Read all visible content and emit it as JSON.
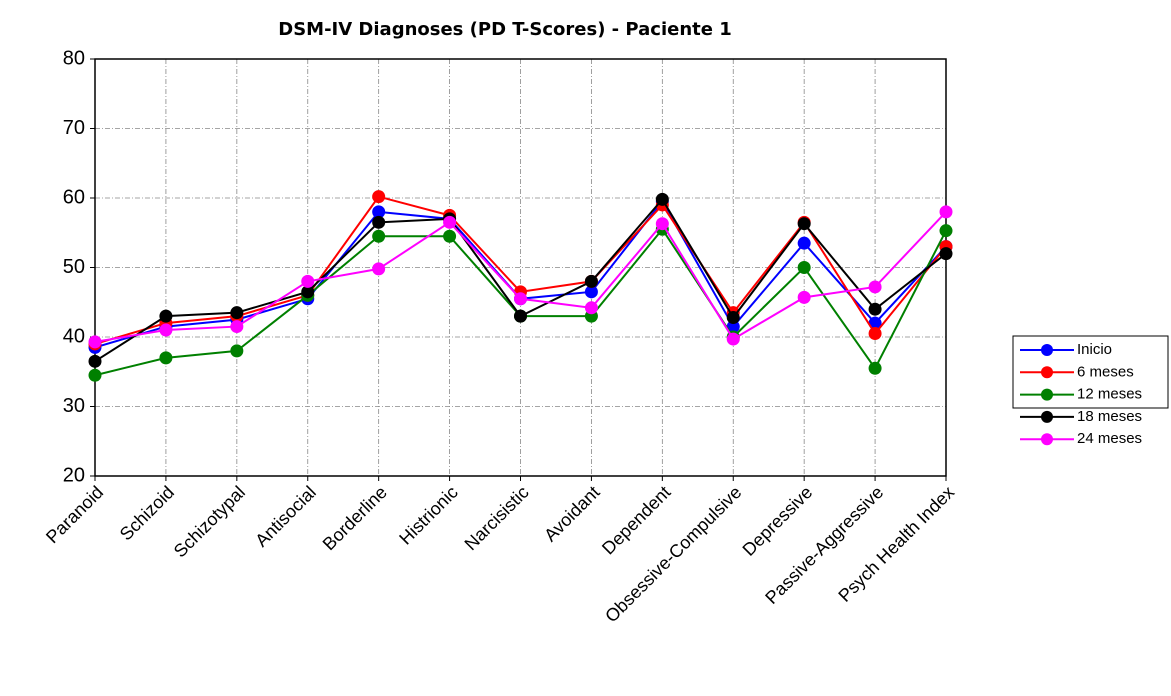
{
  "chart_data": {
    "type": "line",
    "title": "DSM-IV Diagnoses (PD T-Scores) - Paciente 1",
    "categories": [
      "Paranoid",
      "Schizoid",
      "Schizotypal",
      "Antisocial",
      "Borderline",
      "Histrionic",
      "Narcisistic",
      "Avoidant",
      "Dependent",
      "Obsessive-Compulsive",
      "Depressive",
      "Passive-Aggressive",
      "Psych Health Index"
    ],
    "series": [
      {
        "name": "Inicio",
        "color": "#0000ff",
        "values": [
          38.5,
          41.5,
          42.5,
          45.5,
          58,
          57,
          45.5,
          46.5,
          59.5,
          41.5,
          53.5,
          42,
          53
        ]
      },
      {
        "name": "6 meses",
        "color": "#ff0000",
        "values": [
          39,
          42,
          43,
          46,
          60.2,
          57.5,
          46.5,
          48,
          59,
          43.5,
          56.5,
          40.5,
          53
        ]
      },
      {
        "name": "12 meses",
        "color": "#008000",
        "values": [
          34.5,
          37,
          38,
          46,
          54.5,
          54.5,
          43,
          43,
          55.5,
          40,
          50,
          35.5,
          55.3
        ]
      },
      {
        "name": "18 meses",
        "color": "#000000",
        "values": [
          36.5,
          43,
          43.5,
          46.5,
          56.5,
          57,
          43,
          48,
          59.8,
          42.8,
          56.3,
          44,
          52
        ]
      },
      {
        "name": "24 meses",
        "color": "#ff00ff",
        "values": [
          39.3,
          41,
          41.5,
          48,
          49.8,
          56.5,
          45.5,
          44.2,
          56.3,
          39.7,
          45.7,
          47.2,
          58
        ]
      }
    ],
    "ylim": [
      20,
      80
    ],
    "yticks": [
      20,
      30,
      40,
      50,
      60,
      70,
      80
    ],
    "grid": true,
    "legend": "right"
  }
}
